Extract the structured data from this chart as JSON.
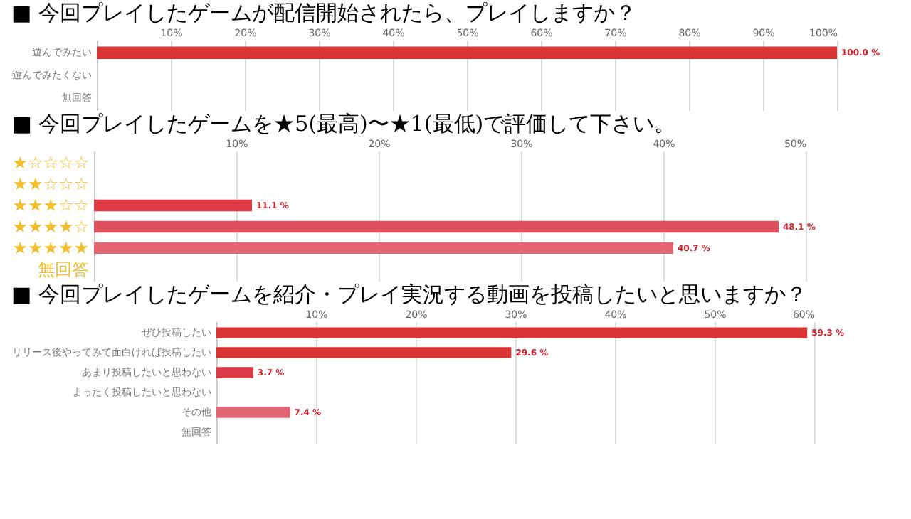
{
  "chart_data": [
    {
      "type": "bar",
      "orientation": "horizontal",
      "title": "■ 今回プレイしたゲームが配信開始されたら、プレイしますか？",
      "categories": [
        "遊んでみたい",
        "遊んでみたくない",
        "無回答"
      ],
      "values": [
        100,
        null,
        null
      ],
      "colors": [
        "#d93434",
        "#dd3b45",
        "#e0505c"
      ],
      "value_labels": [
        "100.0 %",
        null,
        null
      ],
      "xlim": [
        0,
        100
      ],
      "xticks": [
        {
          "value": 10,
          "label": "10%"
        },
        {
          "value": 20,
          "label": "20%"
        },
        {
          "value": 30,
          "label": "30%"
        },
        {
          "value": 40,
          "label": "40%"
        },
        {
          "value": 50,
          "label": "50%"
        },
        {
          "value": 60,
          "label": "60%"
        },
        {
          "value": 70,
          "label": "70%"
        },
        {
          "value": 80,
          "label": "80%"
        },
        {
          "value": 90,
          "label": "90%"
        },
        {
          "value": 100,
          "label": "100%"
        }
      ],
      "grid": "x"
    },
    {
      "type": "bar",
      "orientation": "horizontal",
      "title": "■ 今回プレイしたゲームを★5(最高)〜★1(最低)で評価して下さい。",
      "categories": [
        "★☆☆☆☆",
        "★★☆☆☆",
        "★★★☆☆",
        "★★★★☆",
        "★★★★★",
        "無回答"
      ],
      "values": [
        null,
        null,
        11.1,
        48.1,
        40.7,
        null
      ],
      "colors": [
        "#d93434",
        "#dc3540",
        "#dd3b45",
        "#e0505c",
        "#e36670",
        "#e6737c"
      ],
      "value_labels": [
        null,
        null,
        "11.1 %",
        "48.1 %",
        "40.7 %",
        null
      ],
      "xlim": [
        0,
        50
      ],
      "xticks": [
        {
          "value": 10,
          "label": "10%"
        },
        {
          "value": 20,
          "label": "20%"
        },
        {
          "value": 30,
          "label": "30%"
        },
        {
          "value": 40,
          "label": "40%"
        },
        {
          "value": 50,
          "label": "50%"
        }
      ],
      "grid": "x"
    },
    {
      "type": "bar",
      "orientation": "horizontal",
      "title": "■ 今回プレイしたゲームを紹介・プレイ実況する動画を投稿したいと思いますか？",
      "categories": [
        "ぜひ投稿したい",
        "リリース後やってみて面白ければ投稿したい",
        "あまり投稿したいと思わない",
        "まったく投稿したいと思わない",
        "その他",
        "無回答"
      ],
      "values": [
        59.3,
        29.6,
        3.7,
        null,
        7.4,
        null
      ],
      "colors": [
        "#d93434",
        "#d93434",
        "#dc3a44",
        "#df4a55",
        "#e36670",
        "#e6737c"
      ],
      "value_labels": [
        "59.3 %",
        "29.6 %",
        "3.7 %",
        null,
        "7.4 %",
        null
      ],
      "xlim": [
        0,
        60
      ],
      "xticks": [
        {
          "value": 10,
          "label": "10%"
        },
        {
          "value": 20,
          "label": "20%"
        },
        {
          "value": 30,
          "label": "30%"
        },
        {
          "value": 40,
          "label": "40%"
        },
        {
          "value": 50,
          "label": "50%"
        },
        {
          "value": 60,
          "label": "60%"
        }
      ],
      "grid": "x"
    }
  ]
}
